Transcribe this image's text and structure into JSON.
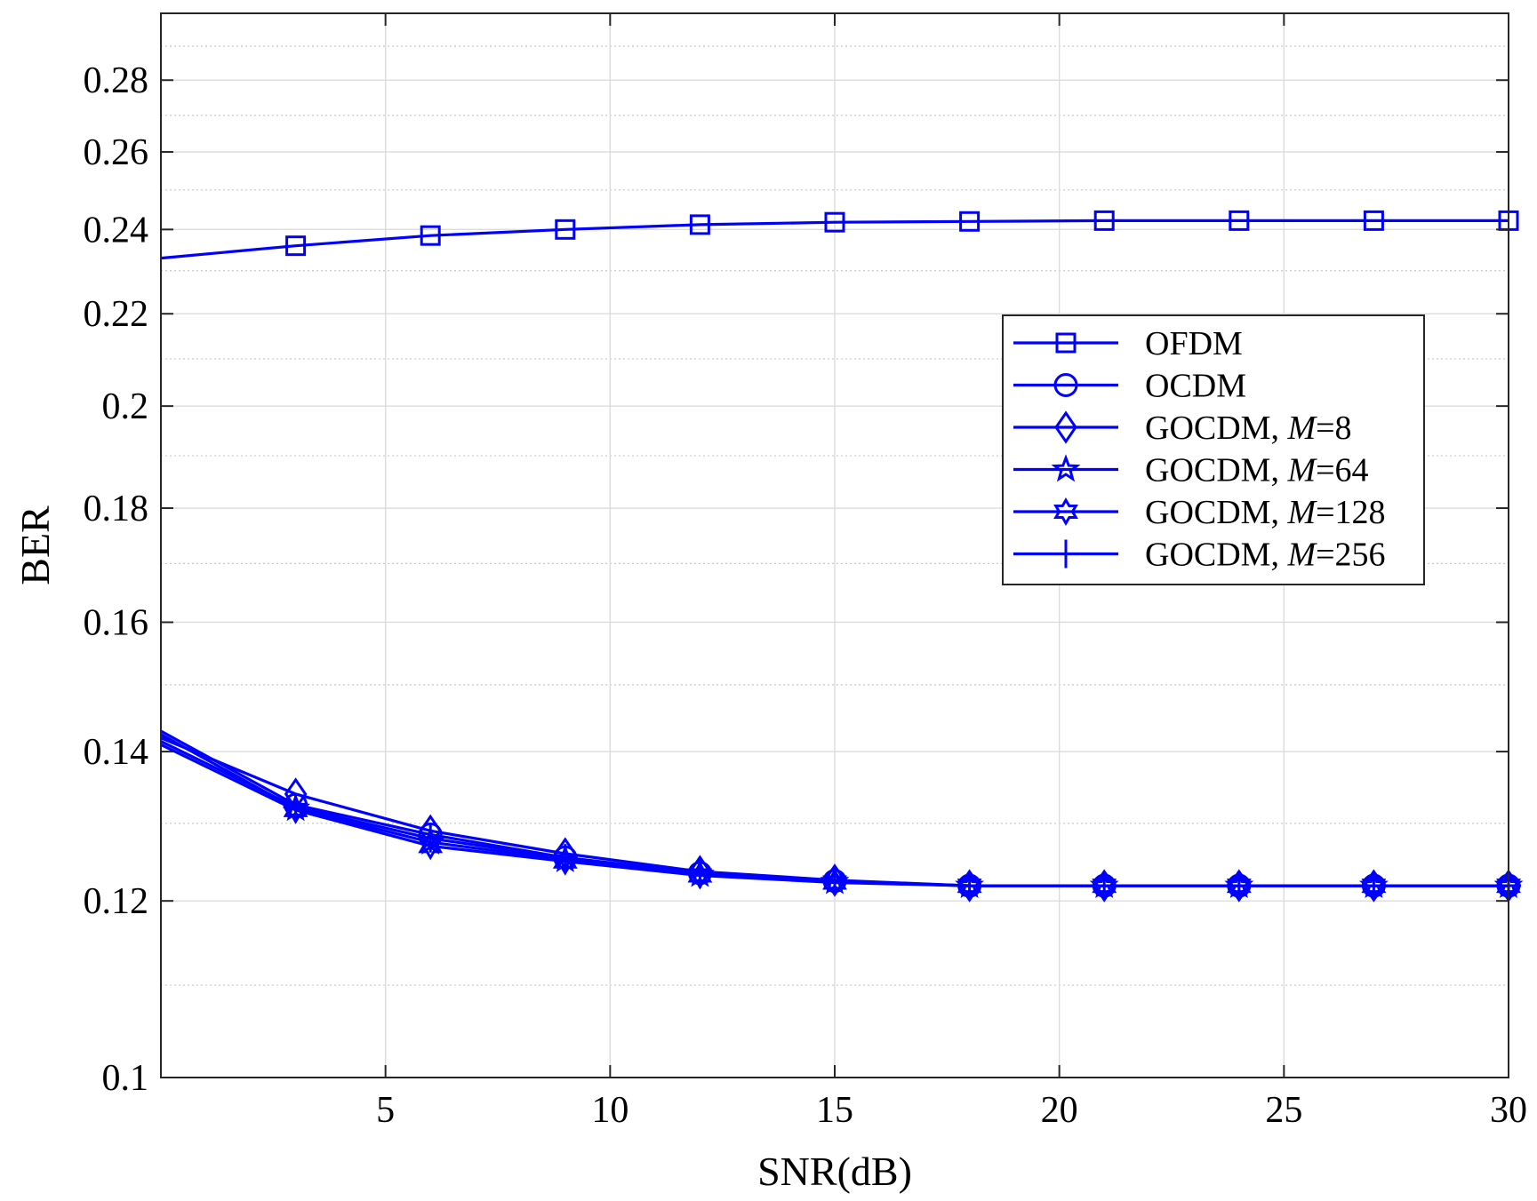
{
  "chart_data": {
    "type": "line",
    "xlabel": "SNR(dB)",
    "ylabel": "BER",
    "xlim": [
      0,
      30
    ],
    "ylim": [
      0.1,
      0.3
    ],
    "yscale": "log",
    "grid": true,
    "minor_grid": true,
    "legend_position": "center-right",
    "xticks": [
      5,
      10,
      15,
      20,
      25,
      30
    ],
    "xtick_labels": [
      "5",
      "10",
      "15",
      "20",
      "25",
      "30"
    ],
    "yticks": [
      0.1,
      0.12,
      0.14,
      0.16,
      0.18,
      0.2,
      0.22,
      0.24,
      0.26,
      0.28
    ],
    "ytick_labels": [
      "0.1",
      "0.12",
      "0.14",
      "0.16",
      "0.18",
      "0.2",
      "0.22",
      "0.24",
      "0.26",
      "0.28"
    ],
    "yminor": [
      0.11,
      0.13,
      0.15,
      0.17,
      0.19,
      0.21,
      0.23,
      0.25,
      0.27,
      0.29
    ],
    "x": [
      0,
      3,
      6,
      9,
      12,
      15,
      18,
      21,
      24,
      27,
      30
    ],
    "series": [
      {
        "name": "OFDM",
        "marker": "square",
        "color": "#0000ff",
        "values": [
          0.233,
          0.236,
          0.2385,
          0.24,
          0.2412,
          0.2418,
          0.242,
          0.2422,
          0.2422,
          0.2422,
          0.2422
        ]
      },
      {
        "name": "OCDM",
        "marker": "circle",
        "color": "#0000ff",
        "values": [
          0.143,
          0.1325,
          0.1285,
          0.1255,
          0.1235,
          0.1225,
          0.1219,
          0.1219,
          0.1219,
          0.1219,
          0.1219
        ]
      },
      {
        "name": "GOCDM, M=8",
        "name_prefix": "GOCDM, ",
        "name_var": "M",
        "name_suffix": "=8",
        "marker": "diamond",
        "color": "#0000ff",
        "values": [
          0.142,
          0.134,
          0.129,
          0.126,
          0.1237,
          0.1226,
          0.1219,
          0.1219,
          0.1219,
          0.1219,
          0.1219
        ]
      },
      {
        "name": "GOCDM, M=64",
        "name_prefix": "GOCDM, ",
        "name_var": "M",
        "name_suffix": "=64",
        "marker": "star",
        "color": "#0000ff",
        "values": [
          0.1425,
          0.132,
          0.1275,
          0.1252,
          0.1233,
          0.1224,
          0.1219,
          0.1219,
          0.1219,
          0.1219,
          0.1219
        ]
      },
      {
        "name": "GOCDM, M=128",
        "name_prefix": "GOCDM, ",
        "name_var": "M",
        "name_suffix": "=128",
        "marker": "hexagram",
        "color": "#0000ff",
        "values": [
          0.141,
          0.1318,
          0.127,
          0.125,
          0.1232,
          0.1223,
          0.1219,
          0.1219,
          0.1219,
          0.1219,
          0.1219
        ]
      },
      {
        "name": "GOCDM, M=256",
        "name_prefix": "GOCDM, ",
        "name_var": "M",
        "name_suffix": "=256",
        "marker": "plus",
        "color": "#0000ff",
        "values": [
          0.1415,
          0.1322,
          0.128,
          0.1254,
          0.1234,
          0.1225,
          0.1219,
          0.1219,
          0.1219,
          0.1219,
          0.1219
        ]
      }
    ]
  }
}
